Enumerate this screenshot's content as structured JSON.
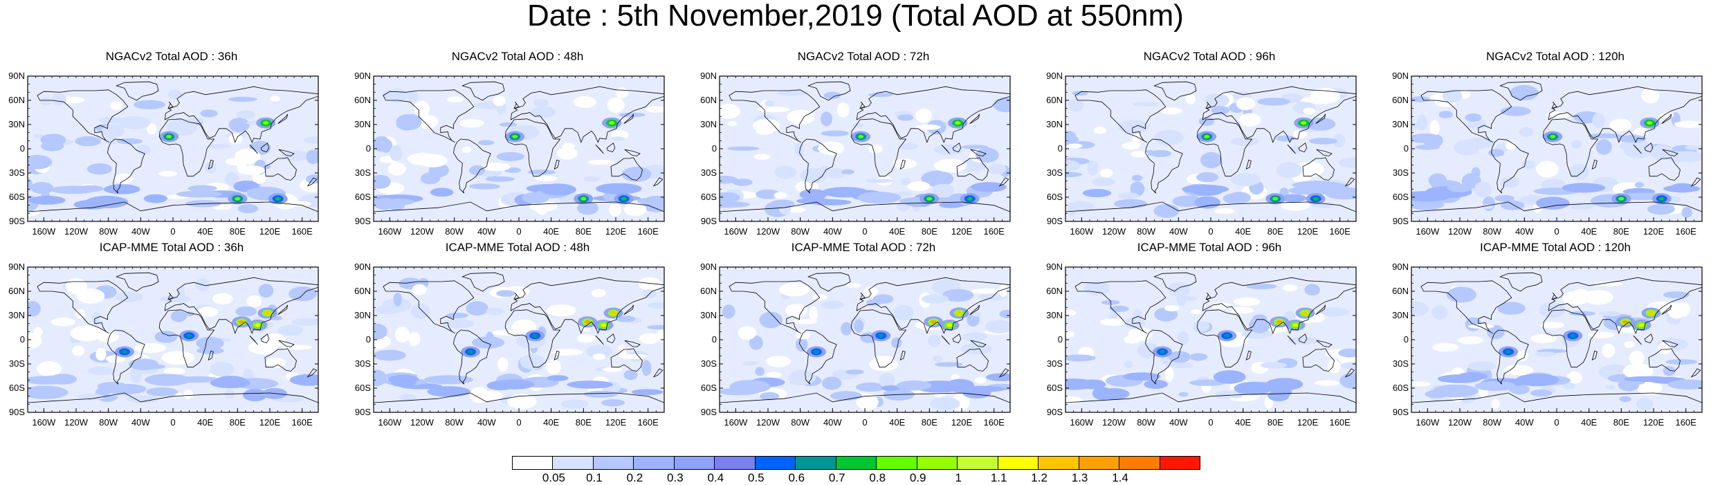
{
  "title": "Date : 5th November,2019 (Total AOD at 550nm)",
  "panels": [
    {
      "title": "NGACv2 Total AOD : 36h",
      "model": "NGACv2",
      "lead": "36h"
    },
    {
      "title": "NGACv2 Total AOD : 48h",
      "model": "NGACv2",
      "lead": "48h"
    },
    {
      "title": "NGACv2 Total AOD : 72h",
      "model": "NGACv2",
      "lead": "72h"
    },
    {
      "title": "NGACv2 Total AOD : 96h",
      "model": "NGACv2",
      "lead": "96h"
    },
    {
      "title": "NGACv2 Total AOD : 120h",
      "model": "NGACv2",
      "lead": "120h"
    },
    {
      "title": "ICAP-MME Total AOD : 36h",
      "model": "ICAP-MME",
      "lead": "36h"
    },
    {
      "title": "ICAP-MME Total AOD : 48h",
      "model": "ICAP-MME",
      "lead": "48h"
    },
    {
      "title": "ICAP-MME Total AOD : 72h",
      "model": "ICAP-MME",
      "lead": "72h"
    },
    {
      "title": "ICAP-MME Total AOD : 96h",
      "model": "ICAP-MME",
      "lead": "96h"
    },
    {
      "title": "ICAP-MME Total AOD : 120h",
      "model": "ICAP-MME",
      "lead": "120h"
    }
  ],
  "lat_ticks": [
    "90N",
    "60N",
    "30N",
    "0",
    "30S",
    "60S",
    "90S"
  ],
  "lon_ticks": [
    "160W",
    "120W",
    "80W",
    "40W",
    "0",
    "40E",
    "80E",
    "120E",
    "160E"
  ],
  "lon_values": [
    -160,
    -120,
    -80,
    -40,
    0,
    40,
    80,
    120,
    160
  ],
  "lat_values": [
    90,
    60,
    30,
    0,
    -30,
    -60,
    -90
  ],
  "colorbar": {
    "colors": [
      "#ffffff",
      "#d6e2ff",
      "#b5c9ff",
      "#9cb4ff",
      "#8ea2f7",
      "#7b80ef",
      "#0063ff",
      "#009696",
      "#00c633",
      "#63ff00",
      "#96ff00",
      "#c6ff33",
      "#ffff00",
      "#ffc600",
      "#ffa000",
      "#ff7c00",
      "#ff1900"
    ],
    "labels": [
      "0.05",
      "0.1",
      "0.2",
      "0.3",
      "0.4",
      "0.5",
      "0.6",
      "0.7",
      "0.8",
      "0.9",
      "1",
      "1.1",
      "1.2",
      "1.3",
      "1.4"
    ]
  },
  "hotspots": {
    "ngac": [
      {
        "lon": -5,
        "lat": 15,
        "level": 0.7
      },
      {
        "lon": 115,
        "lat": 32,
        "level": 0.8
      },
      {
        "lon": 80,
        "lat": -62,
        "level": 0.7
      },
      {
        "lon": 130,
        "lat": -62,
        "level": 0.6
      }
    ],
    "icap": [
      {
        "lon": 85,
        "lat": 22,
        "level": 1.2
      },
      {
        "lon": 105,
        "lat": 18,
        "level": 1.0
      },
      {
        "lon": 117,
        "lat": 33,
        "level": 1.1
      },
      {
        "lon": 20,
        "lat": 5,
        "level": 0.5
      },
      {
        "lon": -60,
        "lat": -15,
        "level": 0.5
      }
    ]
  }
}
